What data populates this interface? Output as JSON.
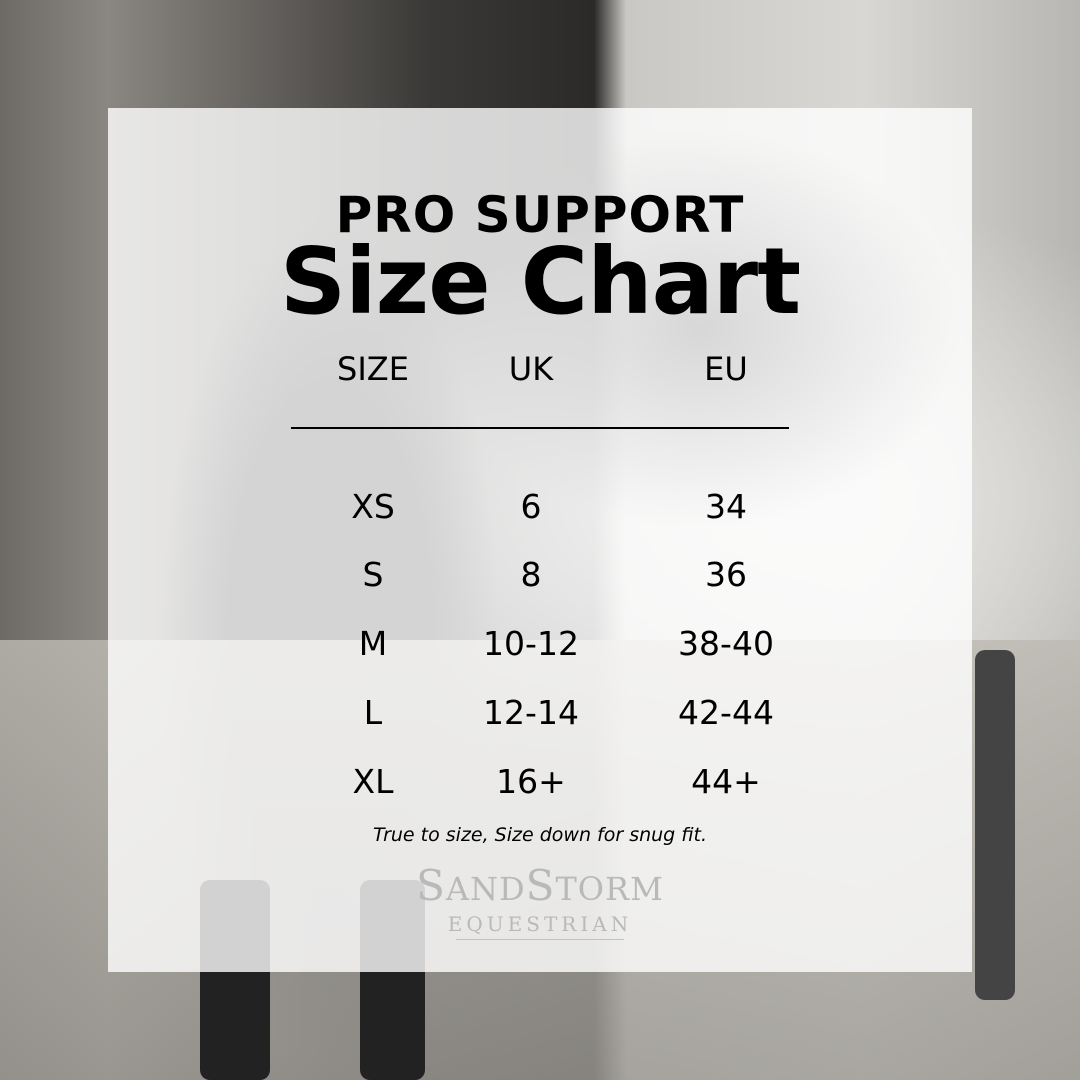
{
  "title": {
    "line1": "PRO SUPPORT",
    "line2": "Size Chart"
  },
  "table": {
    "headers": [
      "SIZE",
      "UK",
      "EU"
    ],
    "rows": [
      [
        "XS",
        "6",
        "34"
      ],
      [
        "S",
        "8",
        "36"
      ],
      [
        "M",
        "10-12",
        "38-40"
      ],
      [
        "L",
        "12-14",
        "42-44"
      ],
      [
        "XL",
        "16+",
        "44+"
      ]
    ]
  },
  "note": "True to size, Size down for snug fit.",
  "logo": {
    "name": "SandStorm",
    "sub": "EQUESTRIAN"
  }
}
